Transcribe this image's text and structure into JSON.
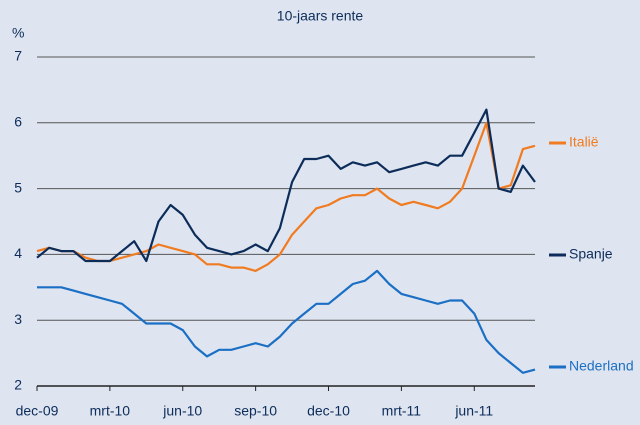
{
  "chart_data": {
    "type": "line",
    "title": "10-jaars rente",
    "y_label": "%",
    "categories": [
      "dec-09",
      null,
      null,
      null,
      null,
      null,
      "mrt-10",
      null,
      null,
      null,
      null,
      null,
      "jun-10",
      null,
      null,
      null,
      null,
      null,
      "sep-10",
      null,
      null,
      null,
      null,
      null,
      "dec-10",
      null,
      null,
      null,
      null,
      null,
      "mrt-11",
      null,
      null,
      null,
      null,
      null,
      "jun-11",
      null,
      null,
      null,
      null,
      null
    ],
    "series": [
      {
        "name": "Italië",
        "color": "#f07b20",
        "values": [
          4.05,
          4.1,
          4.05,
          4.05,
          3.95,
          3.9,
          3.9,
          3.95,
          4.0,
          4.05,
          4.15,
          4.1,
          4.05,
          4.0,
          3.85,
          3.85,
          3.8,
          3.8,
          3.75,
          3.85,
          4.0,
          4.3,
          4.5,
          4.7,
          4.75,
          4.85,
          4.9,
          4.9,
          5.0,
          4.85,
          4.75,
          4.8,
          4.75,
          4.7,
          4.8,
          5.0,
          5.5,
          6.0,
          5.0,
          5.05,
          5.6,
          5.65
        ]
      },
      {
        "name": "Spanje",
        "color": "#0c2c5a",
        "values": [
          3.95,
          4.1,
          4.05,
          4.05,
          3.9,
          3.9,
          3.9,
          4.05,
          4.2,
          3.9,
          4.5,
          4.75,
          4.6,
          4.3,
          4.1,
          4.05,
          4.0,
          4.05,
          4.15,
          4.05,
          4.4,
          5.1,
          5.45,
          5.45,
          5.5,
          5.3,
          5.4,
          5.35,
          5.4,
          5.25,
          5.3,
          5.35,
          5.4,
          5.35,
          5.5,
          5.5,
          5.85,
          6.2,
          5.0,
          4.95,
          5.35,
          5.1
        ]
      },
      {
        "name": "Nederland",
        "color": "#1b6fc4",
        "values": [
          3.5,
          3.5,
          3.5,
          3.45,
          3.4,
          3.35,
          3.3,
          3.25,
          3.1,
          2.95,
          2.95,
          2.95,
          2.85,
          2.6,
          2.45,
          2.55,
          2.55,
          2.6,
          2.65,
          2.6,
          2.75,
          2.95,
          3.1,
          3.25,
          3.25,
          3.4,
          3.55,
          3.6,
          3.75,
          3.55,
          3.4,
          3.35,
          3.3,
          3.25,
          3.3,
          3.3,
          3.1,
          2.7,
          2.5,
          2.35,
          2.2,
          2.25
        ]
      }
    ],
    "ylim": [
      2,
      7
    ],
    "yticks": [
      2,
      3,
      4,
      5,
      6,
      7
    ],
    "grid": true
  }
}
